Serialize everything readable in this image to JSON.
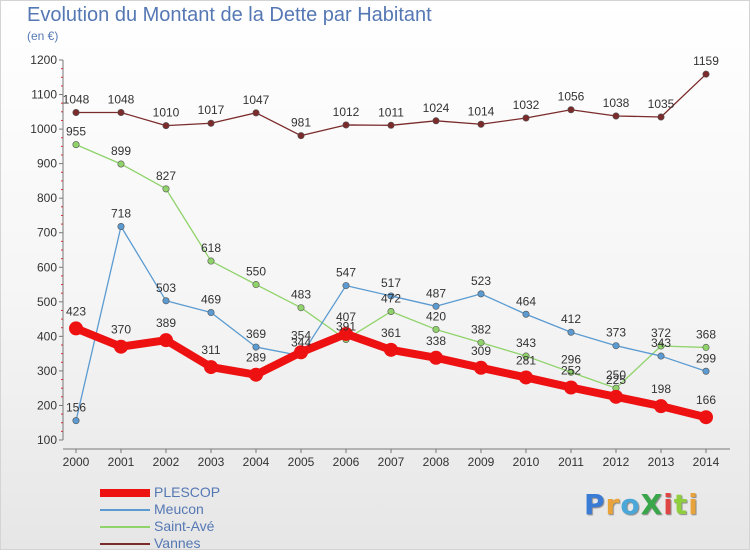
{
  "header": {
    "title": "Evolution du Montant de la Dette par Habitant",
    "subtitle": "(en €)"
  },
  "logo": {
    "text": "ProXiti",
    "colors": [
      "#3a7bd5",
      "#e8a43a",
      "#4aa7d8",
      "#3aa64a",
      "#e04545",
      "#8fcf3e",
      "#e8a43a"
    ]
  },
  "chart_data": {
    "type": "line",
    "title": "Evolution du Montant de la Dette par Habitant",
    "subtitle": "(en €)",
    "xlabel": "",
    "ylabel": "",
    "x": [
      2000,
      2001,
      2002,
      2003,
      2004,
      2005,
      2006,
      2007,
      2008,
      2009,
      2010,
      2011,
      2012,
      2013,
      2014
    ],
    "ylim": [
      100,
      1200
    ],
    "yticks": [
      100,
      200,
      300,
      400,
      500,
      600,
      700,
      800,
      900,
      1000,
      1100,
      1200
    ],
    "grid": false,
    "legend_position": "bottom-left",
    "series": [
      {
        "name": "Vannes",
        "color": "#7b2b2b",
        "values": [
          1048,
          1048,
          1010,
          1017,
          1047,
          981,
          1012,
          1011,
          1024,
          1014,
          1032,
          1056,
          1038,
          1035,
          1159
        ]
      },
      {
        "name": "Saint-Avé",
        "color": "#8fd36a",
        "values": [
          955,
          899,
          827,
          618,
          550,
          483,
          391,
          472,
          420,
          382,
          343,
          296,
          250,
          372,
          368
        ]
      },
      {
        "name": "Meucon",
        "color": "#5b9bd1",
        "values": [
          156,
          718,
          503,
          469,
          369,
          344,
          547,
          517,
          487,
          523,
          464,
          412,
          373,
          343,
          299
        ]
      },
      {
        "name": "PLESCOP",
        "color": "#ee1111",
        "values": [
          423,
          370,
          389,
          311,
          289,
          354,
          407,
          361,
          338,
          309,
          281,
          252,
          225,
          198,
          166
        ]
      }
    ]
  },
  "legend": {
    "items": [
      {
        "name": "PLESCOP",
        "color": "#ee1111",
        "thickness": 8
      },
      {
        "name": "Meucon",
        "color": "#5b9bd1",
        "thickness": 2
      },
      {
        "name": "Saint-Avé",
        "color": "#8fd36a",
        "thickness": 2
      },
      {
        "name": "Vannes",
        "color": "#7b2b2b",
        "thickness": 2
      }
    ]
  }
}
